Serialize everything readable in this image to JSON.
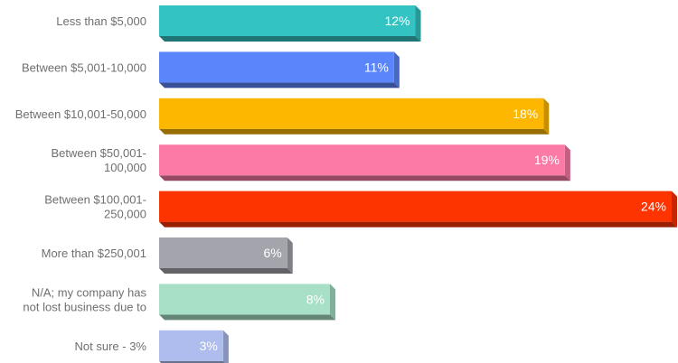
{
  "chart_data": {
    "type": "bar",
    "orientation": "horizontal",
    "title": "",
    "xlabel": "",
    "ylabel": "",
    "categories": [
      "Less than $5,000",
      "Between $5,001-10,000",
      "Between $10,001-50,000",
      "Between $50,001-\n100,000",
      "Between $100,001-\n250,000",
      "More than $250,001",
      "N/A; my company has\nnot lost business due to",
      "Not sure - 3%"
    ],
    "values": [
      12,
      11,
      18,
      19,
      24,
      6,
      8,
      3
    ],
    "value_labels": [
      "12%",
      "11%",
      "18%",
      "19%",
      "24%",
      "6%",
      "8%",
      "3%"
    ],
    "colors": [
      "#33c3c3",
      "#5b86fb",
      "#fdb700",
      "#fc7aa6",
      "#fd3300",
      "#a3a4ac",
      "#a8dfc7",
      "#aebded"
    ],
    "xlim": [
      0,
      24
    ],
    "grid": false,
    "legend": "none"
  }
}
